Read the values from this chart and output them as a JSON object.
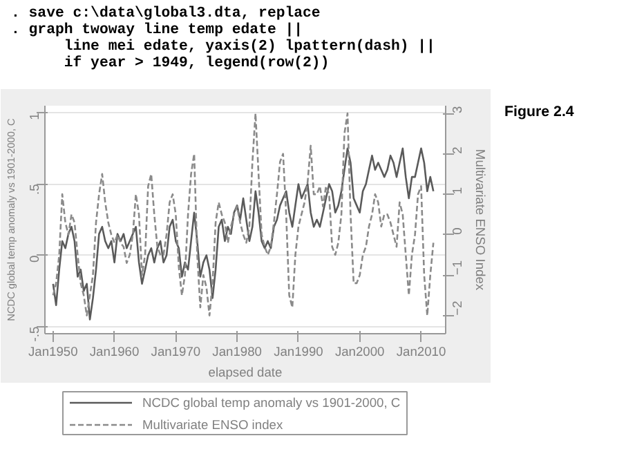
{
  "chart_data": {
    "type": "line",
    "xlabel": "elapsed date",
    "ylabel": "NCDC global temp anomaly vs 1901-2000, C",
    "y2label": "Multivariate ENSO Index",
    "annotations": [
      ". save c:\\data\\global3.dta, replace",
      ". graph twoway line temp edate ||",
      "      line mei edate, yaxis(2) lpattern(dash) ||",
      "      if year > 1949, legend(row(2))",
      "Figure 2.4"
    ],
    "x": [
      "1950-01",
      "1950-07",
      "1951-01",
      "1951-07",
      "1952-01",
      "1952-07",
      "1953-01",
      "1953-07",
      "1954-01",
      "1954-07",
      "1955-01",
      "1955-07",
      "1956-01",
      "1956-07",
      "1957-01",
      "1957-07",
      "1958-01",
      "1958-07",
      "1959-01",
      "1959-07",
      "1960-01",
      "1960-07",
      "1961-01",
      "1961-07",
      "1962-01",
      "1962-07",
      "1963-01",
      "1963-07",
      "1964-01",
      "1964-07",
      "1965-01",
      "1965-07",
      "1966-01",
      "1966-07",
      "1967-01",
      "1967-07",
      "1968-01",
      "1968-07",
      "1969-01",
      "1969-07",
      "1970-01",
      "1970-07",
      "1971-01",
      "1971-07",
      "1972-01",
      "1972-07",
      "1973-01",
      "1973-07",
      "1974-01",
      "1974-07",
      "1975-01",
      "1975-07",
      "1976-01",
      "1976-07",
      "1977-01",
      "1977-07",
      "1978-01",
      "1978-07",
      "1979-01",
      "1979-07",
      "1980-01",
      "1980-07",
      "1981-01",
      "1981-07",
      "1982-01",
      "1982-07",
      "1983-01",
      "1983-07",
      "1984-01",
      "1984-07",
      "1985-01",
      "1985-07",
      "1986-01",
      "1986-07",
      "1987-01",
      "1987-07",
      "1988-01",
      "1988-07",
      "1989-01",
      "1989-07",
      "1990-01",
      "1990-07",
      "1991-01",
      "1991-07",
      "1992-01",
      "1992-07",
      "1993-01",
      "1993-07",
      "1994-01",
      "1994-07",
      "1995-01",
      "1995-07",
      "1996-01",
      "1996-07",
      "1997-01",
      "1997-07",
      "1998-01",
      "1998-07",
      "1999-01",
      "1999-07",
      "2000-01",
      "2000-07",
      "2001-01",
      "2001-07",
      "2002-01",
      "2002-07",
      "2003-01",
      "2003-07",
      "2004-01",
      "2004-07",
      "2005-01",
      "2005-07",
      "2006-01",
      "2006-07",
      "2007-01",
      "2007-07",
      "2008-01",
      "2008-07",
      "2009-01",
      "2009-07",
      "2010-01",
      "2010-07",
      "2011-01",
      "2011-07",
      "2012-01"
    ],
    "series": [
      {
        "name": "NCDC global temp anomaly vs 1901-2000, C",
        "color": "#5a5a5a",
        "line_style": "solid",
        "values": [
          -0.2,
          -0.35,
          -0.1,
          0.1,
          0.05,
          0.15,
          0.2,
          0.1,
          -0.15,
          -0.1,
          -0.25,
          -0.2,
          -0.45,
          -0.3,
          -0.1,
          0.15,
          0.2,
          0.1,
          0.05,
          0.1,
          -0.05,
          0.15,
          0.1,
          0.15,
          0.05,
          0.1,
          0.15,
          0.2,
          -0.05,
          -0.2,
          -0.1,
          0.0,
          0.05,
          -0.05,
          0.05,
          0.1,
          -0.05,
          0.0,
          0.2,
          0.25,
          0.1,
          0.05,
          -0.15,
          -0.05,
          -0.1,
          0.1,
          0.3,
          0.1,
          -0.15,
          -0.05,
          0.0,
          -0.1,
          -0.3,
          -0.1,
          0.2,
          0.25,
          0.1,
          0.2,
          0.15,
          0.3,
          0.35,
          0.25,
          0.4,
          0.25,
          0.1,
          0.2,
          0.45,
          0.3,
          0.1,
          0.05,
          0.1,
          0.05,
          0.2,
          0.25,
          0.35,
          0.4,
          0.45,
          0.3,
          0.2,
          0.35,
          0.5,
          0.4,
          0.45,
          0.5,
          0.3,
          0.2,
          0.25,
          0.2,
          0.3,
          0.4,
          0.5,
          0.45,
          0.3,
          0.35,
          0.45,
          0.6,
          0.75,
          0.65,
          0.4,
          0.35,
          0.3,
          0.45,
          0.5,
          0.6,
          0.7,
          0.6,
          0.65,
          0.6,
          0.55,
          0.6,
          0.7,
          0.65,
          0.55,
          0.65,
          0.75,
          0.55,
          0.4,
          0.55,
          0.55,
          0.65,
          0.75,
          0.65,
          0.45,
          0.55,
          0.45
        ]
      },
      {
        "name": "Multivariate ENSO index",
        "color": "#8a8a8a",
        "line_style": "dashed",
        "axis": "y2",
        "values": [
          -1.5,
          -1.2,
          -0.5,
          1.0,
          0.3,
          0.0,
          0.5,
          0.3,
          -0.5,
          -1.2,
          -1.5,
          -2.0,
          -1.5,
          -1.0,
          0.3,
          1.0,
          1.5,
          0.8,
          0.3,
          0.0,
          -0.2,
          0.0,
          -0.2,
          -0.3,
          -0.7,
          -0.5,
          0.0,
          1.0,
          0.5,
          -1.0,
          -0.5,
          1.2,
          1.5,
          0.5,
          -0.3,
          -0.5,
          -0.5,
          0.0,
          0.8,
          1.0,
          0.5,
          -0.8,
          -1.5,
          -1.0,
          0.5,
          1.5,
          2.0,
          -0.5,
          -1.8,
          -1.0,
          -1.3,
          -2.0,
          -1.2,
          0.3,
          0.8,
          0.5,
          0.3,
          -0.2,
          0.2,
          0.5,
          0.7,
          0.3,
          0.0,
          -0.2,
          0.2,
          1.8,
          3.0,
          1.5,
          0.0,
          -0.3,
          -0.5,
          -0.3,
          0.3,
          1.0,
          1.8,
          2.0,
          0.5,
          -1.5,
          -1.8,
          -0.5,
          0.2,
          0.5,
          0.8,
          1.3,
          2.2,
          1.0,
          1.0,
          1.2,
          0.7,
          1.2,
          1.0,
          -0.3,
          -0.5,
          -0.2,
          0.5,
          2.5,
          3.0,
          0.5,
          -1.2,
          -1.2,
          -1.0,
          -0.5,
          -0.3,
          0.2,
          0.5,
          1.0,
          0.8,
          0.2,
          0.5,
          0.5,
          0.3,
          0.0,
          -0.3,
          0.8,
          0.5,
          -0.5,
          -1.5,
          -0.5,
          0.0,
          1.0,
          1.2,
          -1.0,
          -2.0,
          -1.0,
          -0.2
        ]
      }
    ],
    "xlim": [
      "1948-09",
      "2014-01"
    ],
    "xticks": [
      {
        "value": "1950-01",
        "label": "Jan1950"
      },
      {
        "value": "1960-01",
        "label": "Jan1960"
      },
      {
        "value": "1970-01",
        "label": "Jan1970"
      },
      {
        "value": "1980-01",
        "label": "Jan1980"
      },
      {
        "value": "1990-01",
        "label": "Jan1990"
      },
      {
        "value": "2000-01",
        "label": "Jan2000"
      },
      {
        "value": "2010-01",
        "label": "Jan2010"
      }
    ],
    "ylim": [
      -0.55,
      1.05
    ],
    "yticks": [
      {
        "value": -0.5,
        "label": "-.5"
      },
      0,
      {
        "value": 0.5,
        "label": ".5"
      },
      1
    ],
    "y2lim": [
      -2.45,
      3.19
    ],
    "y2ticks": [
      -2,
      -1,
      0,
      1,
      2,
      3
    ],
    "grid": "y",
    "legend": "bottom",
    "marker": "none"
  }
}
